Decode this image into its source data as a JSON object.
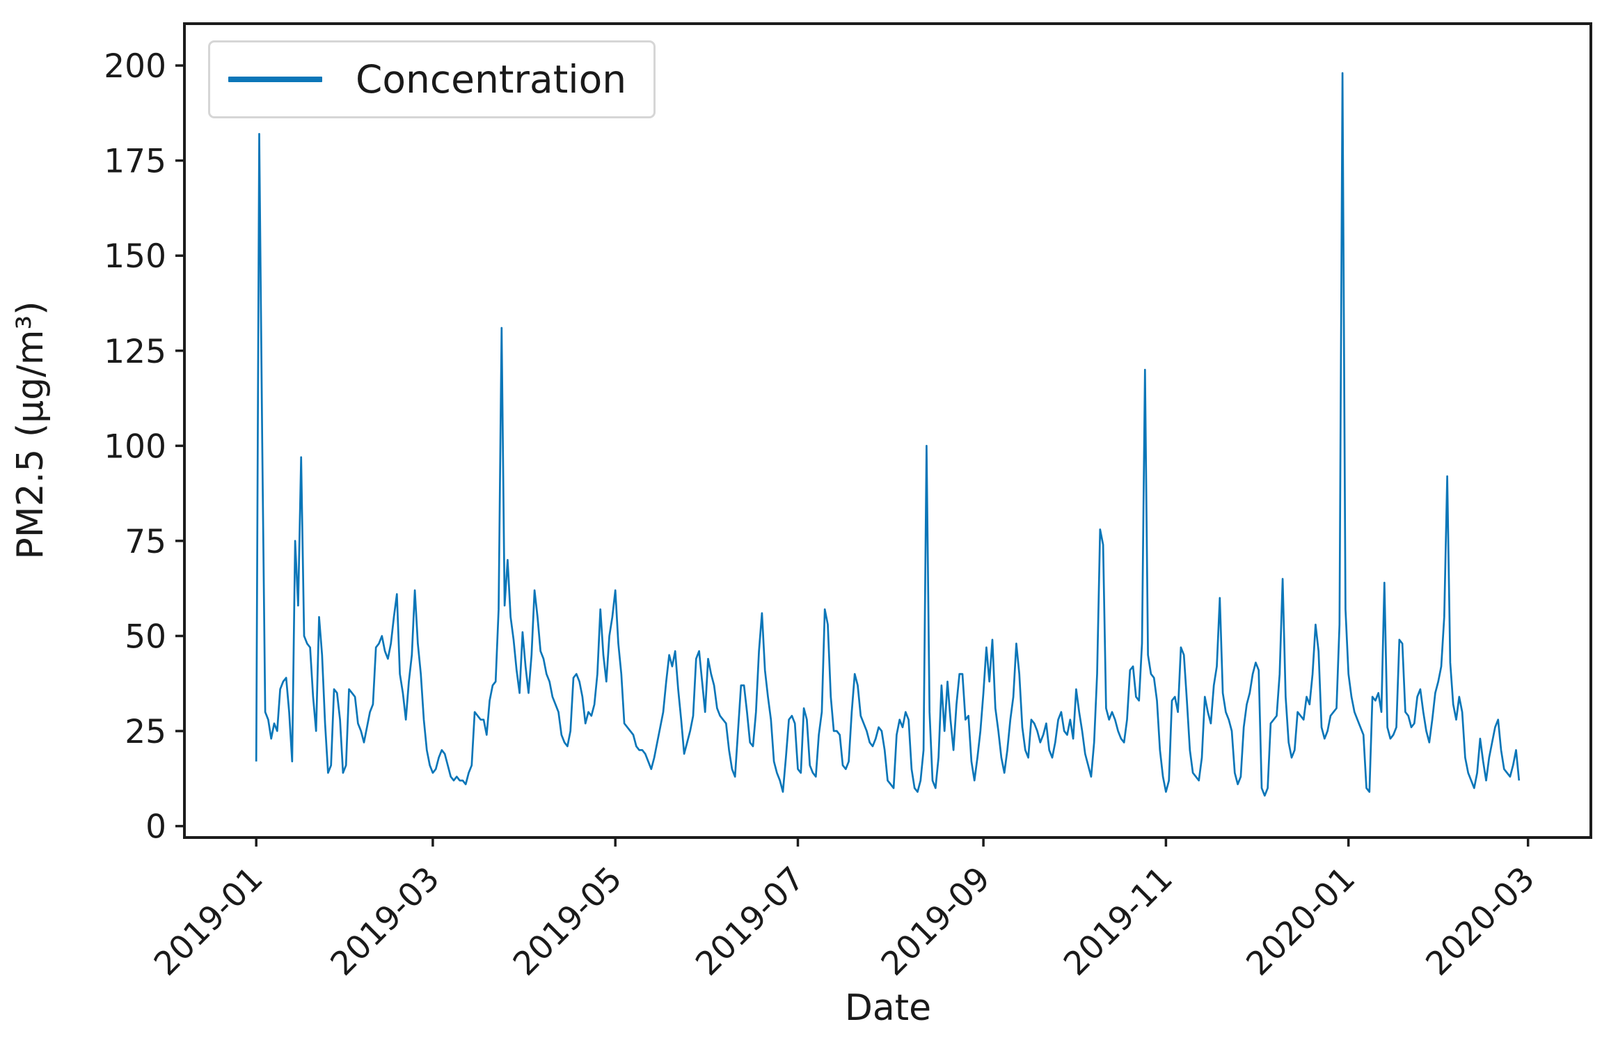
{
  "legend": {
    "label": "Concentration"
  },
  "axes": {
    "xlabel": "Date",
    "ylabel": "PM2.5 (µg/m³)"
  },
  "chart_data": {
    "type": "line",
    "title": "",
    "xlabel": "Date",
    "ylabel": "PM2.5 (µg/m³)",
    "legend_position": "upper left",
    "grid": false,
    "line_color": "#0b76b8",
    "axis_color": "#1c1c1c",
    "ylim": [
      -3,
      211
    ],
    "xlim_days": [
      -24,
      446
    ],
    "y_ticks": [
      0,
      25,
      50,
      75,
      100,
      125,
      150,
      175,
      200
    ],
    "x_ticks": [
      {
        "label": "2019-01",
        "day": 0
      },
      {
        "label": "2019-03",
        "day": 59
      },
      {
        "label": "2019-05",
        "day": 120
      },
      {
        "label": "2019-07",
        "day": 181
      },
      {
        "label": "2019-09",
        "day": 243
      },
      {
        "label": "2019-11",
        "day": 304
      },
      {
        "label": "2020-01",
        "day": 365
      },
      {
        "label": "2020-03",
        "day": 425
      }
    ],
    "series": [
      {
        "name": "Concentration",
        "color": "#0b76b8",
        "start_date": "2019-01-01",
        "cadence": "daily",
        "months": [
          {
            "month": "2019-01",
            "values": [
              17,
              182,
              101,
              30,
              28,
              23,
              27,
              25,
              36,
              38,
              39,
              30,
              17,
              75,
              58,
              97,
              50,
              48,
              47,
              34,
              25,
              55,
              45,
              27,
              14,
              16,
              36,
              35,
              28,
              14,
              16
            ]
          },
          {
            "month": "2019-02",
            "values": [
              36,
              35,
              34,
              27,
              25,
              22,
              26,
              30,
              32,
              47,
              48,
              50,
              46,
              44,
              48,
              55,
              61,
              40,
              35,
              28,
              38,
              45,
              62,
              48,
              40,
              28,
              20,
              16
            ]
          },
          {
            "month": "2019-03",
            "values": [
              14,
              15,
              18,
              20,
              19,
              16,
              13,
              12,
              13,
              12,
              12,
              11,
              14,
              16,
              30,
              29,
              28,
              28,
              24,
              33,
              37,
              38,
              57,
              131,
              58,
              70,
              55,
              49,
              41,
              35,
              51
            ]
          },
          {
            "month": "2019-04",
            "values": [
              42,
              35,
              45,
              62,
              55,
              46,
              44,
              40,
              38,
              34,
              32,
              30,
              24,
              22,
              21,
              25,
              39,
              40,
              38,
              34,
              27,
              30,
              29,
              32,
              40,
              57,
              45,
              38,
              50,
              55
            ]
          },
          {
            "month": "2019-05",
            "values": [
              62,
              48,
              40,
              27,
              26,
              25,
              24,
              21,
              20,
              20,
              19,
              17,
              15,
              18,
              22,
              26,
              30,
              38,
              45,
              42,
              46,
              36,
              28,
              19,
              22,
              25,
              29,
              44,
              46,
              38,
              30
            ]
          },
          {
            "month": "2019-06",
            "values": [
              44,
              40,
              37,
              31,
              29,
              28,
              27,
              20,
              15,
              13,
              25,
              37,
              37,
              30,
              22,
              21,
              30,
              46,
              56,
              41,
              34,
              28,
              17,
              14,
              12,
              9,
              18,
              28,
              29,
              27
            ]
          },
          {
            "month": "2019-07",
            "values": [
              15,
              14,
              31,
              28,
              16,
              14,
              13,
              24,
              30,
              57,
              53,
              34,
              25,
              25,
              24,
              16,
              15,
              17,
              30,
              40,
              37,
              29,
              27,
              25,
              22,
              21,
              23,
              26,
              25,
              20,
              12
            ]
          },
          {
            "month": "2019-08",
            "values": [
              11,
              10,
              24,
              28,
              26,
              30,
              28,
              15,
              10,
              9,
              12,
              20,
              100,
              30,
              12,
              10,
              18,
              37,
              25,
              38,
              28,
              20,
              32,
              40,
              40,
              28,
              29,
              17,
              12,
              18,
              25
            ]
          },
          {
            "month": "2019-09",
            "values": [
              35,
              47,
              38,
              49,
              31,
              25,
              18,
              14,
              20,
              28,
              34,
              48,
              40,
              26,
              20,
              18,
              28,
              27,
              25,
              22,
              24,
              27,
              20,
              18,
              22,
              28,
              30,
              25,
              24,
              28
            ]
          },
          {
            "month": "2019-10",
            "values": [
              23,
              36,
              30,
              25,
              19,
              16,
              13,
              22,
              40,
              78,
              74,
              31,
              28,
              30,
              28,
              25,
              23,
              22,
              28,
              41,
              42,
              34,
              33,
              48,
              120,
              45,
              40,
              39,
              33,
              20,
              13
            ]
          },
          {
            "month": "2019-11",
            "values": [
              9,
              12,
              33,
              34,
              30,
              47,
              45,
              33,
              20,
              14,
              13,
              12,
              18,
              34,
              30,
              27,
              37,
              42,
              60,
              35,
              30,
              28,
              25,
              14,
              11,
              13,
              26,
              32,
              35,
              40
            ]
          },
          {
            "month": "2019-12",
            "values": [
              43,
              41,
              10,
              8,
              10,
              27,
              28,
              29,
              40,
              65,
              34,
              22,
              18,
              20,
              30,
              29,
              28,
              34,
              32,
              40,
              53,
              46,
              26,
              23,
              25,
              29,
              30,
              31,
              53,
              198,
              57
            ]
          },
          {
            "month": "2020-01",
            "values": [
              40,
              34,
              30,
              28,
              26,
              24,
              10,
              9,
              34,
              33,
              35,
              30,
              64,
              26,
              23,
              24,
              26,
              49,
              48,
              30,
              29,
              26,
              27,
              34,
              36,
              30,
              25,
              22,
              28,
              35,
              38
            ]
          },
          {
            "month": "2020-02",
            "values": [
              42,
              55,
              92,
              43,
              32,
              28,
              34,
              30,
              18,
              14,
              12,
              10,
              14,
              23,
              17,
              12,
              18,
              22,
              26,
              28,
              20,
              15,
              14,
              13,
              16,
              20,
              12
            ]
          }
        ]
      }
    ]
  }
}
